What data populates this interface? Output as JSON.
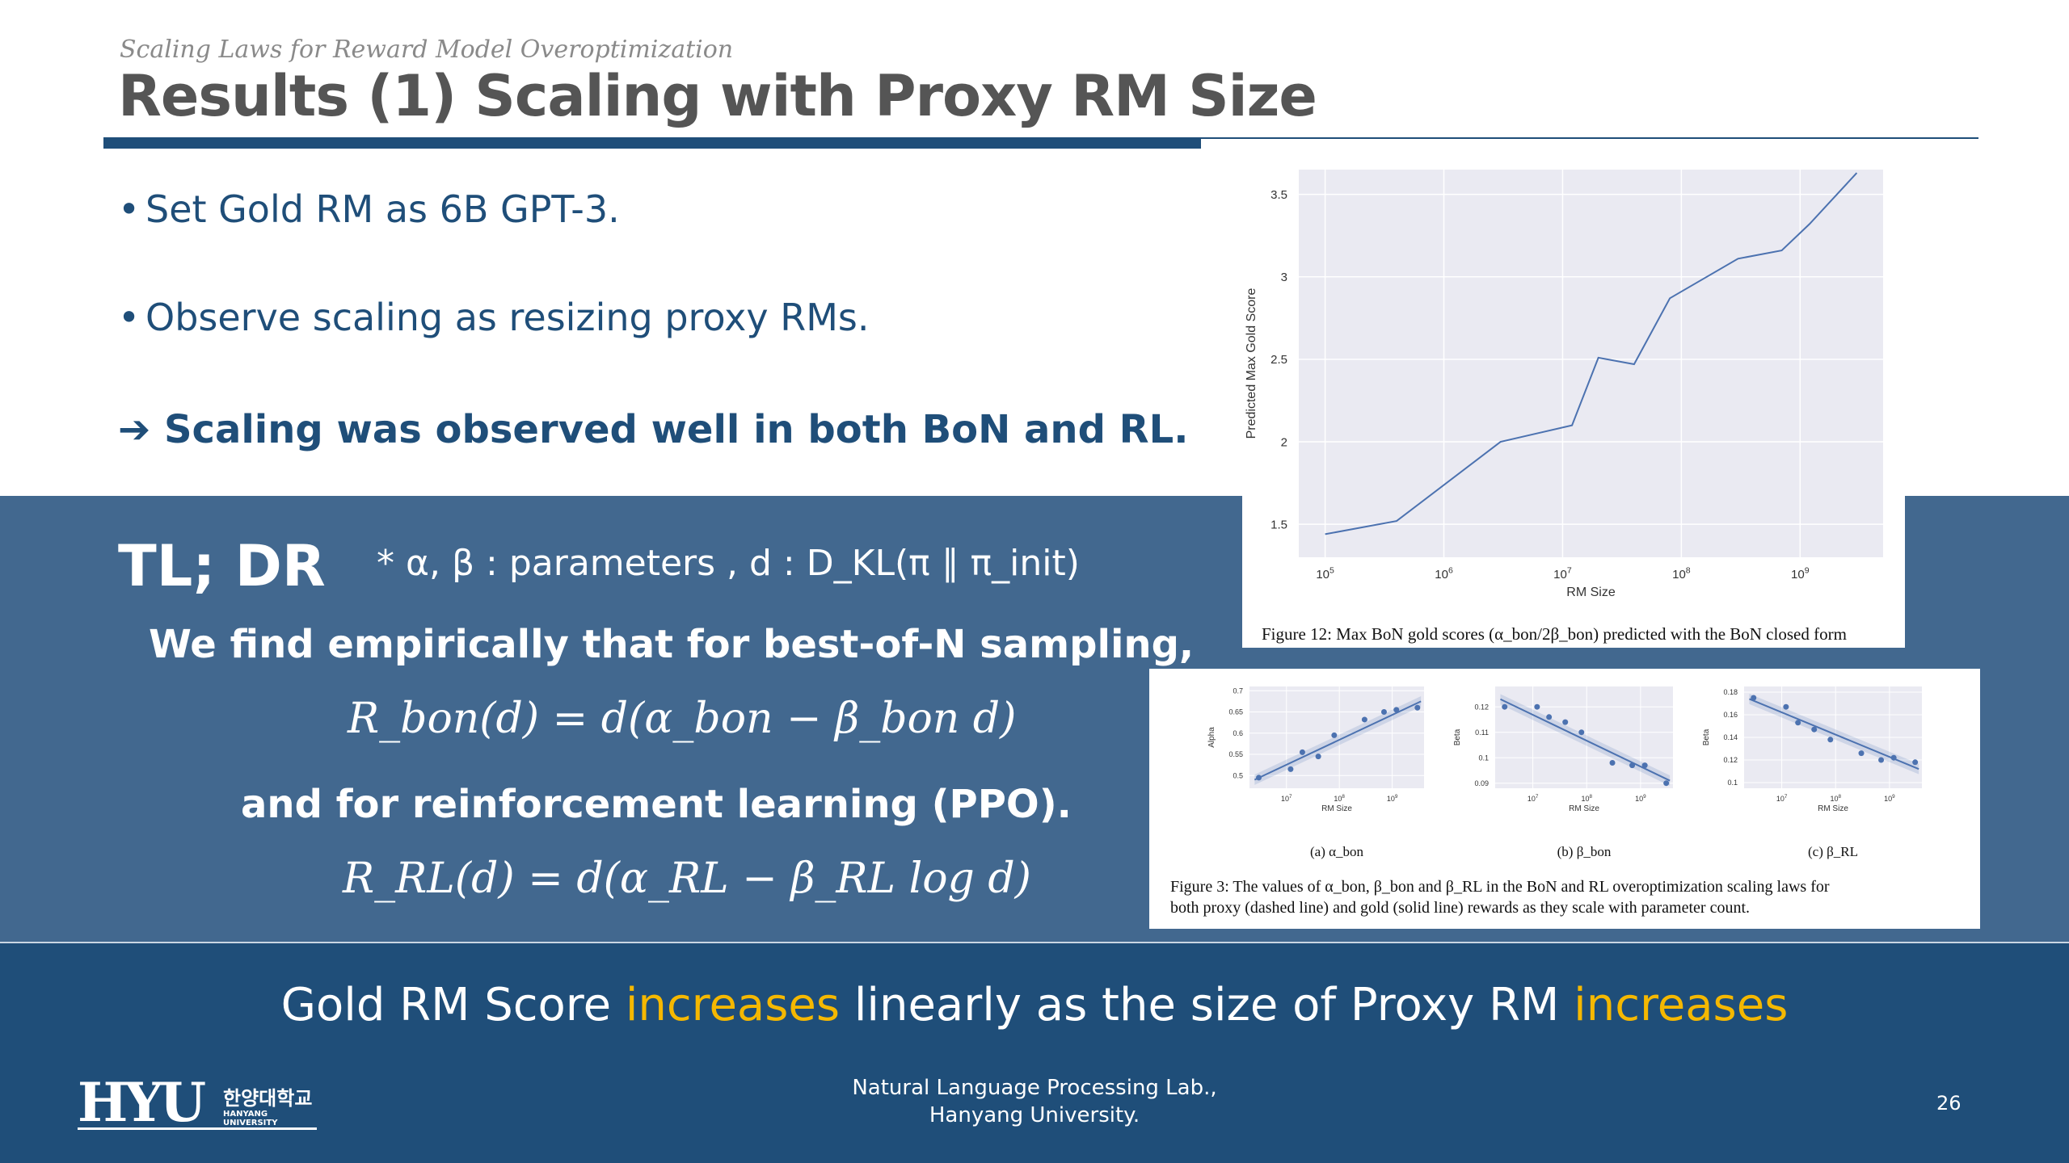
{
  "header": {
    "subtitle": "Scaling Laws for Reward Model Overoptimization",
    "title": "Results (1) Scaling with Proxy RM Size"
  },
  "bullets": [
    "Set Gold RM as 6B GPT-3.",
    "Observe scaling as resizing proxy RMs."
  ],
  "conclusion": "Scaling was observed well in both BoN and RL.",
  "tldr": {
    "label": "TL; DR",
    "param_note": "* α, β : parameters , d : D_KL(π ∥ π_init)",
    "finding": "We find empirically that for best-of-N sampling,",
    "eq_bon": "R_bon(d) = d(α_bon − β_bon d)",
    "and_rl": "and for reinforcement learning (PPO).",
    "eq_rl": "R_RL(d) = d(α_RL − β_RL log d)"
  },
  "headline": {
    "part1": "Gold RM Score ",
    "highlight1": "increases",
    "part2": " linearly as the size of Proxy RM ",
    "highlight2": "increases"
  },
  "footer": {
    "lab_line1": "Natural Language Processing Lab.,",
    "lab_line2": "Hanyang University.",
    "page_number": "26",
    "logo_text": "HYU",
    "logo_korean": "한양대학교",
    "logo_english": "HANYANG UNIVERSITY"
  },
  "colors": {
    "navy": "#1f4e79",
    "panel_blue": "#42688f",
    "highlight_yellow": "#f5b800",
    "series_blue": "#4c72b0",
    "plot_bg": "#eaeaf2"
  },
  "chart_data": [
    {
      "type": "line",
      "id": "fig12",
      "title": "",
      "xlabel": "RM Size",
      "ylabel": "Predicted Max Gold Score",
      "xscale": "log",
      "xlim": [
        60000,
        5000000000
      ],
      "ylim": [
        1.3,
        3.65
      ],
      "x_tick_labels": [
        "10^5",
        "10^6",
        "10^7",
        "10^8",
        "10^9"
      ],
      "x_tick_values": [
        100000,
        1000000,
        10000000,
        100000000,
        1000000000
      ],
      "y_ticks": [
        1.5,
        2.0,
        2.5,
        3.0,
        3.5
      ],
      "x": [
        100000,
        400000,
        3000000,
        12000000,
        20000000,
        40000000,
        80000000,
        300000000,
        700000000,
        1200000000,
        3000000000
      ],
      "y": [
        1.44,
        1.52,
        2.0,
        2.1,
        2.51,
        2.47,
        2.87,
        3.11,
        3.16,
        3.32,
        3.63
      ],
      "caption": "Figure 12: Max BoN gold scores (α_bon/2β_bon) predicted with the BoN closed form"
    },
    {
      "type": "scatter",
      "id": "fig3a",
      "xlabel": "RM Size",
      "ylabel": "Alpha",
      "xscale": "log",
      "xlim": [
        2000000,
        4000000000
      ],
      "ylim": [
        0.47,
        0.71
      ],
      "y_ticks": [
        0.5,
        0.55,
        0.6,
        0.65,
        0.7
      ],
      "x_tick_labels": [
        "10^7",
        "10^8",
        "10^9"
      ],
      "x_tick_values": [
        10000000,
        100000000,
        1000000000
      ],
      "x": [
        3000000,
        12000000,
        20000000,
        40000000,
        80000000,
        300000000,
        700000000,
        1200000000,
        3000000000
      ],
      "y": [
        0.495,
        0.515,
        0.555,
        0.545,
        0.595,
        0.632,
        0.65,
        0.655,
        0.66
      ],
      "fit": [
        [
          2500000,
          0.49
        ],
        [
          3500000000,
          0.675
        ]
      ],
      "subcaption": "(a) α_bon"
    },
    {
      "type": "scatter",
      "id": "fig3b",
      "xlabel": "RM Size",
      "ylabel": "Beta",
      "xscale": "log",
      "xlim": [
        2000000,
        4000000000
      ],
      "ylim": [
        0.088,
        0.128
      ],
      "y_ticks": [
        0.09,
        0.1,
        0.11,
        0.12
      ],
      "x_tick_labels": [
        "10^7",
        "10^8",
        "10^9"
      ],
      "x_tick_values": [
        10000000,
        100000000,
        1000000000
      ],
      "x": [
        3000000,
        12000000,
        20000000,
        40000000,
        80000000,
        300000000,
        700000000,
        1200000000,
        3000000000
      ],
      "y": [
        0.12,
        0.12,
        0.116,
        0.114,
        0.11,
        0.098,
        0.097,
        0.097,
        0.09
      ],
      "fit": [
        [
          2500000,
          0.123
        ],
        [
          3500000000,
          0.091
        ]
      ],
      "subcaption": "(b) β_bon"
    },
    {
      "type": "scatter",
      "id": "fig3c",
      "xlabel": "RM Size",
      "ylabel": "Beta",
      "xscale": "log",
      "xlim": [
        2000000,
        4000000000
      ],
      "ylim": [
        0.095,
        0.185
      ],
      "y_ticks": [
        0.1,
        0.12,
        0.14,
        0.16,
        0.18
      ],
      "x_tick_labels": [
        "10^7",
        "10^8",
        "10^9"
      ],
      "x_tick_values": [
        10000000,
        100000000,
        1000000000
      ],
      "x": [
        3000000,
        12000000,
        20000000,
        40000000,
        80000000,
        300000000,
        700000000,
        1200000000,
        3000000000
      ],
      "y": [
        0.175,
        0.167,
        0.153,
        0.147,
        0.138,
        0.126,
        0.12,
        0.122,
        0.118
      ],
      "fit": [
        [
          2500000,
          0.174
        ],
        [
          3500000000,
          0.112
        ]
      ],
      "subcaption": "(c) β_RL"
    }
  ],
  "fig3_caption_line1": "Figure 3: The values of α_bon, β_bon and β_RL in the BoN and RL overoptimization scaling laws for",
  "fig3_caption_line2": "both proxy (dashed line) and gold (solid line) rewards as they scale with parameter count."
}
